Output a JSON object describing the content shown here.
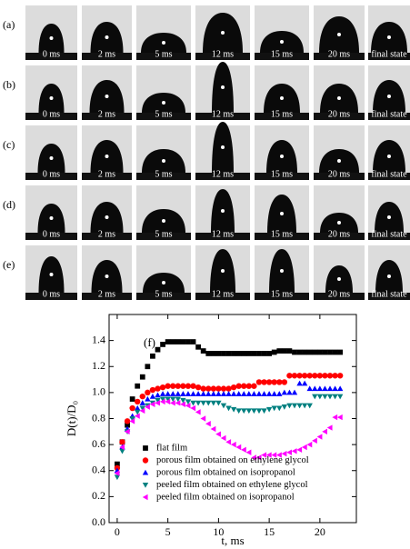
{
  "panels": {
    "rows": [
      {
        "label": "(a)"
      },
      {
        "label": "(b)"
      },
      {
        "label": "(c)"
      },
      {
        "label": "(d)"
      },
      {
        "label": "(e)"
      }
    ],
    "times": [
      "0 ms",
      "2 ms",
      "5 ms",
      "12 ms",
      "15 ms",
      "20 ms",
      "final state"
    ]
  },
  "chart_data": {
    "type": "scatter",
    "annotation": "(f)",
    "xlabel": "t, ms",
    "ylabel": "D(t)/D₀",
    "xlim": [
      -0.8,
      23.6
    ],
    "ylim": [
      0,
      1.6
    ],
    "xticks": [
      0,
      5,
      10,
      15,
      20
    ],
    "yticks": [
      {
        "value": 0,
        "label": "0.0"
      },
      {
        "value": 0.2,
        "label": "0.2"
      },
      {
        "value": 0.4,
        "label": "0.4"
      },
      {
        "value": 0.6,
        "label": "0.6"
      },
      {
        "value": 0.8,
        "label": "0.8"
      },
      {
        "value": 1.0,
        "label": "1.0"
      },
      {
        "value": 1.2,
        "label": "1.2"
      },
      {
        "value": 1.4,
        "label": "1.4"
      }
    ],
    "x": [
      0,
      0.5,
      1,
      1.5,
      2,
      2.5,
      3,
      3.5,
      4,
      4.5,
      5,
      5.5,
      6,
      6.5,
      7,
      7.5,
      8,
      8.5,
      9,
      9.5,
      10,
      10.5,
      11,
      11.5,
      12,
      12.5,
      13,
      13.5,
      14,
      14.5,
      15,
      15.5,
      16,
      16.5,
      17,
      17.5,
      18,
      18.5,
      19,
      19.5,
      20,
      20.5,
      21,
      21.5,
      22
    ],
    "series": [
      {
        "name": "flat film",
        "color": "#000000",
        "marker": "square",
        "values": [
          0.45,
          0.62,
          0.75,
          0.95,
          1.05,
          1.12,
          1.2,
          1.28,
          1.33,
          1.37,
          1.39,
          1.39,
          1.39,
          1.39,
          1.39,
          1.39,
          1.35,
          1.32,
          1.3,
          1.3,
          1.3,
          1.3,
          1.3,
          1.3,
          1.3,
          1.3,
          1.3,
          1.3,
          1.3,
          1.3,
          1.3,
          1.31,
          1.32,
          1.32,
          1.32,
          1.31,
          1.31,
          1.31,
          1.31,
          1.31,
          1.31,
          1.31,
          1.31,
          1.31,
          1.31
        ]
      },
      {
        "name": "porous film obtained on ethylene glycol",
        "color": "#ff0000",
        "marker": "circle",
        "values": [
          0.42,
          0.62,
          0.78,
          0.88,
          0.93,
          0.97,
          1.0,
          1.02,
          1.03,
          1.04,
          1.05,
          1.05,
          1.05,
          1.05,
          1.05,
          1.05,
          1.04,
          1.03,
          1.03,
          1.03,
          1.03,
          1.03,
          1.03,
          1.04,
          1.05,
          1.05,
          1.05,
          1.05,
          1.08,
          1.08,
          1.08,
          1.08,
          1.08,
          1.08,
          1.13,
          1.13,
          1.13,
          1.13,
          1.13,
          1.13,
          1.13,
          1.13,
          1.13,
          1.13,
          1.13
        ]
      },
      {
        "name": "porous film obtained on isopropanol",
        "color": "#0000ff",
        "marker": "triangle-up",
        "values": [
          0.4,
          0.58,
          0.72,
          0.82,
          0.88,
          0.92,
          0.95,
          0.97,
          0.98,
          0.99,
          0.99,
          0.99,
          0.99,
          0.99,
          0.99,
          0.99,
          0.99,
          0.99,
          0.99,
          0.99,
          0.99,
          0.99,
          0.99,
          0.99,
          0.99,
          0.99,
          0.99,
          0.99,
          0.99,
          0.99,
          0.99,
          0.99,
          0.99,
          1.0,
          1.0,
          1.0,
          1.07,
          1.07,
          1.03,
          1.03,
          1.03,
          1.03,
          1.03,
          1.03,
          1.03
        ]
      },
      {
        "name": "peeled film obtained on ethylene glycol",
        "color": "#008080",
        "marker": "triangle-down",
        "values": [
          0.35,
          0.55,
          0.7,
          0.8,
          0.85,
          0.88,
          0.9,
          0.92,
          0.94,
          0.95,
          0.95,
          0.95,
          0.95,
          0.94,
          0.93,
          0.92,
          0.92,
          0.92,
          0.92,
          0.92,
          0.92,
          0.9,
          0.88,
          0.87,
          0.86,
          0.86,
          0.86,
          0.86,
          0.86,
          0.86,
          0.87,
          0.88,
          0.88,
          0.89,
          0.9,
          0.9,
          0.9,
          0.9,
          0.9,
          0.97,
          0.97,
          0.97,
          0.97,
          0.97,
          0.97
        ]
      },
      {
        "name": "peeled film obtained on isopropanol",
        "color": "#ff00ff",
        "marker": "triangle-left",
        "values": [
          0.38,
          0.58,
          0.7,
          0.78,
          0.82,
          0.86,
          0.89,
          0.91,
          0.92,
          0.93,
          0.93,
          0.92,
          0.92,
          0.91,
          0.9,
          0.88,
          0.85,
          0.8,
          0.76,
          0.72,
          0.68,
          0.65,
          0.62,
          0.6,
          0.58,
          0.56,
          0.54,
          0.5,
          0.5,
          0.52,
          0.52,
          0.52,
          0.52,
          0.53,
          0.54,
          0.55,
          0.56,
          0.58,
          0.6,
          0.63,
          0.66,
          0.7,
          0.73,
          0.81,
          0.81
        ]
      }
    ]
  }
}
